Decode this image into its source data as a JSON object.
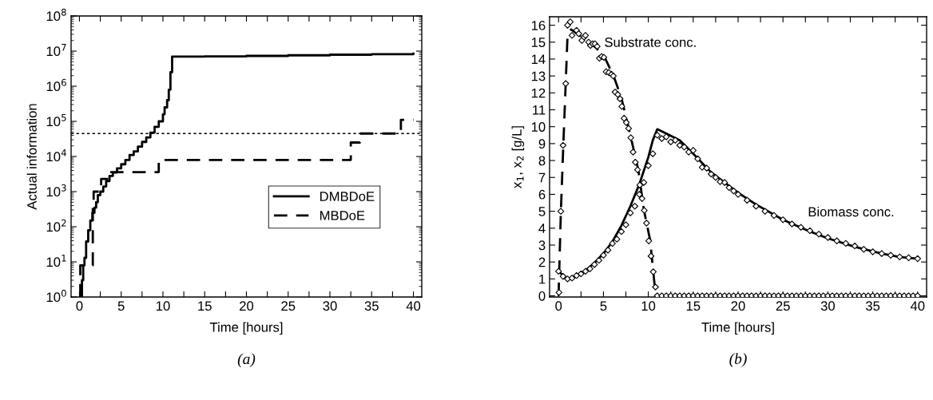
{
  "chart_data": [
    {
      "type": "step",
      "xlabel": "Time [hours]",
      "ylabel": "Actual information",
      "log": "y",
      "legend": "right",
      "grid": false,
      "xlim": [
        -1,
        41
      ],
      "xticks": [
        0,
        {
          "value": 2.5,
          "label": null
        },
        5,
        {
          "value": 7.5,
          "label": null
        },
        10,
        {
          "value": 12.5,
          "label": null
        },
        15,
        {
          "value": 17.5,
          "label": null
        },
        20,
        {
          "value": 22.5,
          "label": null
        },
        25,
        {
          "value": 27.5,
          "label": null
        },
        30,
        {
          "value": 32.5,
          "label": null
        },
        35,
        {
          "value": 37.5,
          "label": null
        },
        40
      ],
      "ylim": [
        1,
        100000000
      ],
      "yticks": [
        {
          "value": 1,
          "label": "10$^{0}$"
        },
        {
          "value": 10,
          "label": "10$^{1}$"
        },
        {
          "value": 100,
          "label": "10$^{2}$"
        },
        {
          "value": 1000,
          "label": "10$^{3}$"
        },
        {
          "value": 10000,
          "label": "10$^{4}$"
        },
        {
          "value": 100000,
          "label": "10$^{5}$"
        },
        {
          "value": 1000000,
          "label": "10$^{6}$"
        },
        {
          "value": 10000000,
          "label": "10$^{7}$"
        },
        {
          "value": 100000000,
          "label": "10$^{8}$"
        }
      ],
      "ref_lines": [
        {
          "axis": "y",
          "value": 45000,
          "line_style": "dotted",
          "color": "#000000"
        }
      ],
      "annotations": [
        "(a)"
      ],
      "series": [
        {
          "name": "DMBDoE",
          "color": "#000000",
          "line_style": "solid",
          "x": [
            0.2,
            0.3,
            0.45,
            0.6,
            0.8,
            1.05,
            1.3,
            1.55,
            1.8,
            2.0,
            2.2,
            2.5,
            2.85,
            3.2,
            3.6,
            4,
            4.5,
            5,
            5.5,
            6,
            6.5,
            7,
            7.5,
            8,
            8.5,
            9,
            9.5,
            10,
            10.2,
            10.5,
            10.7,
            10.9,
            11.1,
            15,
            20,
            25,
            30,
            35,
            40
          ],
          "values": [
            1,
            3,
            8,
            13,
            38,
            80,
            150,
            250,
            350,
            500,
            800,
            1000,
            1400,
            2000,
            2800,
            3500,
            4600,
            6000,
            8000,
            11000,
            14000,
            19000,
            26000,
            35000,
            48000,
            70000,
            100000,
            160000,
            250000,
            400000,
            800000,
            2500000,
            7000000,
            7100000,
            7300000,
            7600000,
            7900000,
            8200000,
            8500000
          ]
        },
        {
          "name": "MBDoE",
          "color": "#000000",
          "line_style": "dashed",
          "x": [
            0.05,
            0.1,
            1.6,
            1.7,
            2.6,
            3.6,
            9.5,
            32.5,
            33.6,
            38.5,
            40
          ],
          "values": [
            1,
            8,
            500,
            1000,
            2300,
            3600,
            8000,
            25000,
            45000,
            110000,
            110000
          ]
        }
      ]
    },
    {
      "type": "line",
      "xlabel": "Time [hours]",
      "ylabel": "x$_{1}$, x$_{2}$ [g/L]",
      "grid": false,
      "legend": false,
      "xlim": [
        -1,
        41
      ],
      "xticks": [
        0,
        {
          "value": 2.5,
          "label": null
        },
        5,
        {
          "value": 7.5,
          "label": null
        },
        10,
        {
          "value": 12.5,
          "label": null
        },
        15,
        {
          "value": 17.5,
          "label": null
        },
        20,
        {
          "value": 22.5,
          "label": null
        },
        25,
        {
          "value": 27.5,
          "label": null
        },
        30,
        {
          "value": 32.5,
          "label": null
        },
        35,
        {
          "value": 37.5,
          "label": null
        },
        40
      ],
      "ylim": [
        -0.07,
        16.5
      ],
      "yticks": [
        0,
        1,
        2,
        3,
        4,
        5,
        6,
        7,
        8,
        9,
        10,
        11,
        12,
        13,
        14,
        15,
        16
      ],
      "annotations": [
        "Substrate conc.",
        "Biomass conc.",
        "(b)"
      ],
      "series": [
        {
          "type": "line",
          "color": "#000000",
          "line_style": "dashed",
          "marker": "none",
          "x": [
            0,
            0.26,
            0.53,
            0.8,
            1.0,
            1.4,
            3.4,
            4.1,
            5.1,
            6.2,
            7.0,
            8.0,
            8.9,
            9.5,
            10.2,
            10.7,
            11,
            40
          ],
          "values": [
            0,
            5.0,
            8.9,
            12.6,
            15.4,
            15.75,
            15.0,
            14.7,
            14.15,
            12.9,
            11.7,
            9.5,
            7.4,
            5.1,
            3.3,
            0.64,
            0,
            0
          ]
        },
        {
          "type": "line",
          "color": "#000000",
          "line_style": "solid",
          "marker": "none",
          "x": [
            0,
            0.5,
            1.0,
            1.5,
            2,
            3,
            4,
            5,
            6,
            7,
            8,
            9,
            10,
            10.5,
            11,
            12,
            13.5,
            15,
            17,
            20,
            22,
            25,
            28,
            30,
            33,
            36,
            38,
            40
          ],
          "values": [
            1.45,
            1.2,
            1.0,
            1.05,
            1.2,
            1.5,
            1.95,
            2.5,
            3.2,
            4.15,
            5.3,
            6.6,
            8.2,
            9.2,
            9.85,
            9.6,
            9.2,
            8.4,
            7.3,
            6.1,
            5.4,
            4.5,
            3.8,
            3.4,
            2.9,
            2.5,
            2.3,
            2.2
          ]
        },
        {
          "type": "scatter",
          "color": "#000000",
          "marker": "diamond",
          "x": [
            0.05,
            0.25,
            0.5,
            0.8,
            1.0,
            1.3,
            1.5,
            2.0,
            2.25,
            2.6,
            2.85,
            3.0,
            3.35,
            3.55,
            3.8,
            4.05,
            4.3,
            4.55,
            4.8,
            5.05,
            5.3,
            5.6,
            5.9,
            6.1,
            6.3,
            6.6,
            6.85,
            7.05,
            7.3,
            7.55,
            7.8,
            8.05,
            8.3,
            8.55,
            8.8,
            9.05,
            9.3,
            9.55,
            9.8,
            10.05,
            10.3,
            10.55,
            10.8,
            11,
            11.5,
            12,
            12.5,
            13,
            13.5,
            14,
            14.5,
            15,
            15.5,
            16,
            16.5,
            17,
            17.5,
            18,
            18.5,
            19,
            19.5,
            20,
            20.5,
            21,
            21.5,
            22,
            22.5,
            23,
            23.5,
            24,
            24.5,
            25,
            25.5,
            26,
            26.5,
            27,
            27.5,
            28,
            28.5,
            29,
            29.5,
            30,
            30.5,
            31,
            31.5,
            32,
            32.5,
            33,
            33.5,
            34,
            34.5,
            35,
            35.5,
            36,
            36.5,
            37,
            37.5,
            38,
            38.5,
            39,
            39.5,
            40
          ],
          "values": [
            0.2,
            5.0,
            8.9,
            12.55,
            16.0,
            16.2,
            15.4,
            15.7,
            15.5,
            15.1,
            15.3,
            15.4,
            15.0,
            14.8,
            14.9,
            14.9,
            14.75,
            14.05,
            14.15,
            14.1,
            13.25,
            13.2,
            13.1,
            13.0,
            12.05,
            11.9,
            11.65,
            11.2,
            10.5,
            10.25,
            9.9,
            9.35,
            8.5,
            7.9,
            7.45,
            6.55,
            5.75,
            5.05,
            4.3,
            3.25,
            2.35,
            1.42,
            0.52,
            0,
            0,
            0,
            0,
            0,
            0,
            0,
            0,
            0,
            0,
            0,
            0,
            0,
            0,
            0,
            0,
            0,
            0,
            0,
            0,
            0,
            0,
            0,
            0,
            0,
            0,
            0,
            0,
            0,
            0,
            0,
            0,
            0,
            0,
            0,
            0,
            0,
            0,
            0,
            0,
            0,
            0,
            0,
            0,
            0,
            0,
            0,
            0,
            0,
            0,
            0,
            0,
            0,
            0,
            0,
            0,
            0,
            0,
            0
          ]
        },
        {
          "type": "scatter",
          "color": "#000000",
          "marker": "diamond",
          "x": [
            0,
            0.5,
            1.0,
            1.5,
            2,
            2.5,
            3,
            3.5,
            4,
            4.5,
            5,
            5.5,
            6,
            6.5,
            7,
            7.5,
            8,
            8.5,
            9,
            9.5,
            10,
            10.5,
            11,
            11.5,
            12,
            12.5,
            13,
            13.5,
            14,
            14.5,
            15,
            15.5,
            16,
            16.5,
            17,
            17.5,
            18,
            18.5,
            19,
            19.5,
            20,
            21,
            22,
            23,
            24,
            25,
            26,
            27,
            28,
            29,
            30,
            31,
            32,
            33,
            34,
            35,
            36,
            37,
            38,
            39,
            40
          ],
          "values": [
            1.45,
            1.15,
            1.0,
            1.05,
            1.2,
            1.3,
            1.45,
            1.6,
            1.85,
            2.1,
            2.4,
            2.7,
            3.1,
            3.35,
            3.8,
            4.2,
            4.9,
            5.3,
            6.0,
            6.7,
            7.7,
            8.4,
            9.5,
            9.3,
            9.4,
            9.1,
            9.2,
            8.9,
            8.8,
            8.5,
            8.6,
            8.1,
            7.6,
            7.55,
            7.2,
            7.0,
            6.75,
            6.7,
            6.4,
            6.2,
            6.0,
            5.65,
            5.3,
            5.0,
            4.75,
            4.5,
            4.25,
            4.05,
            3.85,
            3.65,
            3.45,
            3.25,
            3.1,
            2.95,
            2.75,
            2.6,
            2.5,
            2.4,
            2.3,
            2.25,
            2.2
          ]
        }
      ]
    }
  ]
}
